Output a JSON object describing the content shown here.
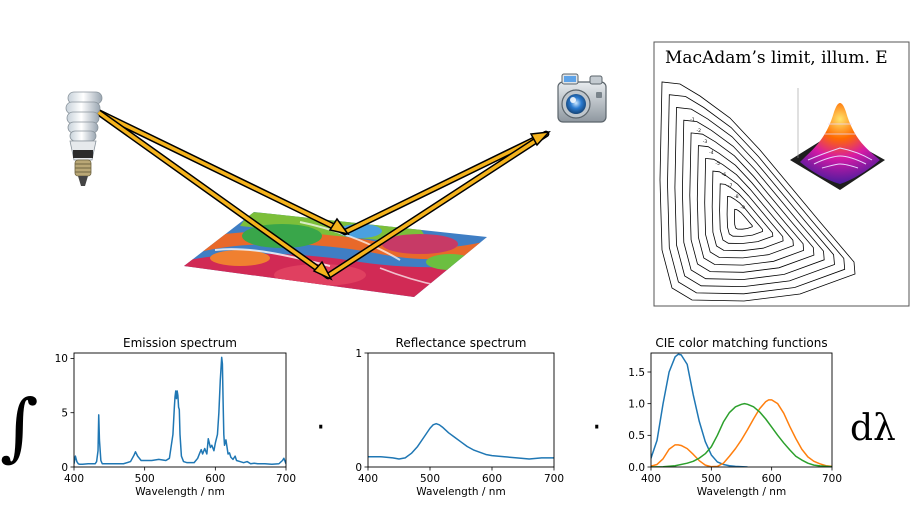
{
  "scene": {
    "lamp_icon": "cfl-bulb-icon",
    "camera_icon": "camera-icon",
    "surface": "textured-fabric-surface"
  },
  "macadam": {
    "title": "MacAdam’s limit, illum. E",
    "contour_labels": [
      "-1",
      "-2",
      "-3",
      "-4",
      "-5",
      "-6",
      "-7",
      "-8",
      "-9"
    ]
  },
  "integral_symbol": "∫",
  "dot_symbol": "·",
  "d_lambda": "dλ",
  "chart_data": [
    {
      "type": "line",
      "title": "Emission spectrum",
      "xlabel": "Wavelength / nm",
      "ylabel": "",
      "xlim": [
        400,
        700
      ],
      "ylim": [
        0,
        10.5
      ],
      "xticks": [
        400,
        500,
        600,
        700
      ],
      "yticks": [
        0,
        5,
        10
      ],
      "grid": false,
      "series": [
        {
          "color": "#1f77b4",
          "x": [
            400,
            402,
            404,
            406,
            408,
            412,
            420,
            430,
            432,
            434,
            435,
            436,
            438,
            440,
            450,
            460,
            470,
            480,
            485,
            487,
            490,
            495,
            500,
            510,
            520,
            530,
            535,
            540,
            542,
            543,
            544,
            545,
            546,
            547,
            548,
            549,
            550,
            552,
            555,
            560,
            570,
            575,
            578,
            580,
            582,
            585,
            588,
            590,
            593,
            595,
            598,
            600,
            603,
            605,
            607,
            609,
            610,
            611,
            612,
            613,
            615,
            618,
            620,
            622,
            625,
            628,
            630,
            635,
            640,
            645,
            650,
            655,
            660,
            670,
            680,
            690,
            695,
            697,
            700
          ],
          "y": [
            0.3,
            1.0,
            0.5,
            0.3,
            0.25,
            0.25,
            0.3,
            0.3,
            0.5,
            1.5,
            4.8,
            2.5,
            0.6,
            0.3,
            0.3,
            0.3,
            0.3,
            0.5,
            1.1,
            1.4,
            1.0,
            0.6,
            0.6,
            0.6,
            0.7,
            0.6,
            0.8,
            3.0,
            5.5,
            6.5,
            7.0,
            6.3,
            7.0,
            6.6,
            5.5,
            5.3,
            3.0,
            1.0,
            0.5,
            0.4,
            0.4,
            0.8,
            1.3,
            1.6,
            1.2,
            1.7,
            1.2,
            2.6,
            1.8,
            2.0,
            1.5,
            2.2,
            3.0,
            5.0,
            8.0,
            10.1,
            9.5,
            6.0,
            3.0,
            2.0,
            2.5,
            1.2,
            1.3,
            0.9,
            0.7,
            1.0,
            0.6,
            0.5,
            0.4,
            0.5,
            0.3,
            0.35,
            0.3,
            0.3,
            0.25,
            0.3,
            0.6,
            0.8,
            0.3
          ]
        }
      ]
    },
    {
      "type": "line",
      "title": "Reflectance spectrum",
      "xlabel": "Wavelength / nm",
      "ylabel": "",
      "xlim": [
        400,
        700
      ],
      "ylim": [
        0,
        1
      ],
      "xticks": [
        400,
        500,
        600,
        700
      ],
      "yticks": [
        0,
        1
      ],
      "grid": false,
      "series": [
        {
          "color": "#1f77b4",
          "x": [
            400,
            420,
            440,
            450,
            460,
            470,
            480,
            490,
            500,
            505,
            510,
            515,
            520,
            530,
            540,
            550,
            560,
            570,
            580,
            590,
            600,
            620,
            640,
            660,
            680,
            700
          ],
          "y": [
            0.09,
            0.09,
            0.08,
            0.07,
            0.08,
            0.12,
            0.18,
            0.26,
            0.34,
            0.37,
            0.38,
            0.37,
            0.35,
            0.3,
            0.26,
            0.22,
            0.18,
            0.15,
            0.13,
            0.11,
            0.1,
            0.09,
            0.08,
            0.07,
            0.08,
            0.08
          ]
        }
      ]
    },
    {
      "type": "line",
      "title": "CIE color matching functions",
      "xlabel": "Wavelength / nm",
      "ylabel": "",
      "xlim": [
        400,
        700
      ],
      "ylim": [
        0,
        1.8
      ],
      "xticks": [
        400,
        500,
        600,
        700
      ],
      "yticks": [
        0.0,
        0.5,
        1.0,
        1.5
      ],
      "grid": false,
      "series": [
        {
          "color": "#1f77b4",
          "x": [
            380,
            390,
            400,
            410,
            420,
            430,
            440,
            445,
            450,
            460,
            470,
            480,
            490,
            500,
            510,
            520,
            530,
            540,
            560
          ],
          "y": [
            0.007,
            0.03,
            0.14,
            0.42,
            1.0,
            1.5,
            1.74,
            1.78,
            1.77,
            1.62,
            1.14,
            0.72,
            0.4,
            0.19,
            0.08,
            0.04,
            0.02,
            0.01,
            0.0
          ]
        },
        {
          "color": "#ff7f0e",
          "x": [
            380,
            390,
            400,
            410,
            420,
            430,
            440,
            445,
            450,
            460,
            470,
            480,
            490,
            500,
            510,
            520,
            530,
            540,
            550,
            560,
            570,
            580,
            590,
            595,
            600,
            610,
            620,
            630,
            640,
            650,
            660,
            670,
            680,
            690,
            700,
            720
          ],
          "y": [
            0.001,
            0.004,
            0.014,
            0.04,
            0.13,
            0.28,
            0.35,
            0.35,
            0.34,
            0.29,
            0.2,
            0.1,
            0.03,
            0.005,
            0.01,
            0.06,
            0.17,
            0.29,
            0.43,
            0.59,
            0.76,
            0.92,
            1.03,
            1.06,
            1.06,
            1.0,
            0.85,
            0.64,
            0.45,
            0.28,
            0.16,
            0.09,
            0.05,
            0.02,
            0.01,
            0.0
          ]
        },
        {
          "color": "#2ca02c",
          "x": [
            380,
            400,
            420,
            440,
            460,
            470,
            480,
            490,
            500,
            510,
            520,
            530,
            540,
            550,
            555,
            560,
            570,
            580,
            590,
            600,
            610,
            620,
            630,
            640,
            650,
            660,
            670,
            680,
            700
          ],
          "y": [
            0.0,
            0.0,
            0.004,
            0.02,
            0.06,
            0.09,
            0.14,
            0.21,
            0.32,
            0.5,
            0.71,
            0.86,
            0.95,
            0.99,
            1.0,
            0.99,
            0.95,
            0.87,
            0.76,
            0.63,
            0.5,
            0.38,
            0.27,
            0.17,
            0.11,
            0.06,
            0.03,
            0.017,
            0.004
          ]
        }
      ]
    }
  ]
}
